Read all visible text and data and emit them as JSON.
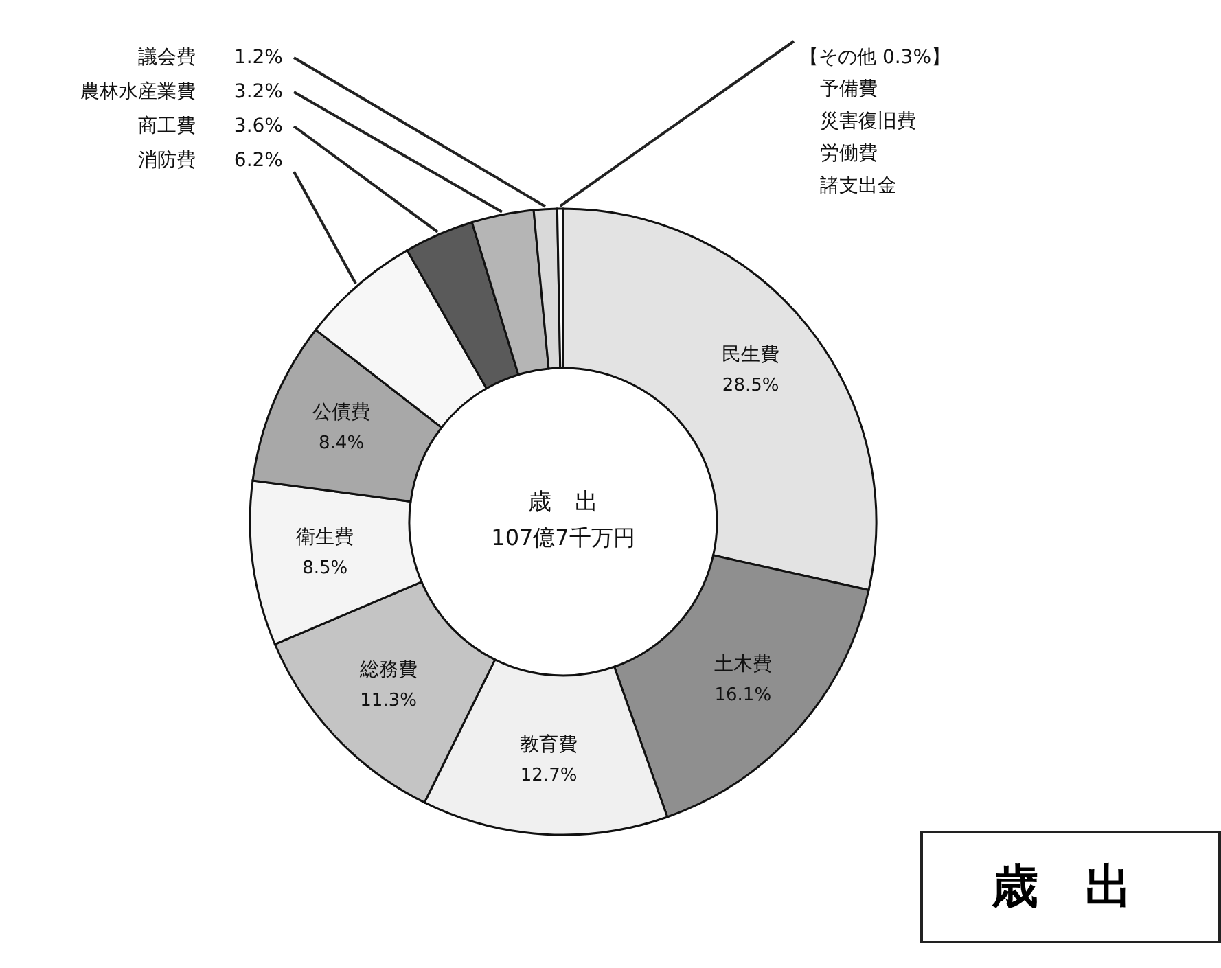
{
  "chart_data": {
    "type": "donut",
    "categories": [
      "民生費",
      "土木費",
      "教育費",
      "総務費",
      "衛生費",
      "公債費",
      "消防費",
      "商工費",
      "農林水産業費",
      "議会費",
      "【その他"
    ],
    "values": [
      28.5,
      16.1,
      12.7,
      11.3,
      8.5,
      8.4,
      6.2,
      3.6,
      3.2,
      1.2,
      0.3
    ],
    "value_labels": [
      "28.5%",
      "16.1%",
      "12.7%",
      "11.3%",
      "8.5%",
      "8.4%",
      "6.2%",
      "3.6%",
      "3.2%",
      "1.2%",
      "0.3%】"
    ],
    "colors": [
      "#e3e3e3",
      "#8f8f8f",
      "#f0f0f0",
      "#c4c4c4",
      "#f4f4f4",
      "#a8a8a8",
      "#f7f7f7",
      "#5a5a5a",
      "#b5b5b5",
      "#d9d9d9",
      "#ffffff"
    ],
    "annotations": [
      "歳　出",
      "107億7千万円",
      "予備費",
      "災害復旧費",
      "労働費",
      "諸支出金",
      "歳　出"
    ]
  }
}
